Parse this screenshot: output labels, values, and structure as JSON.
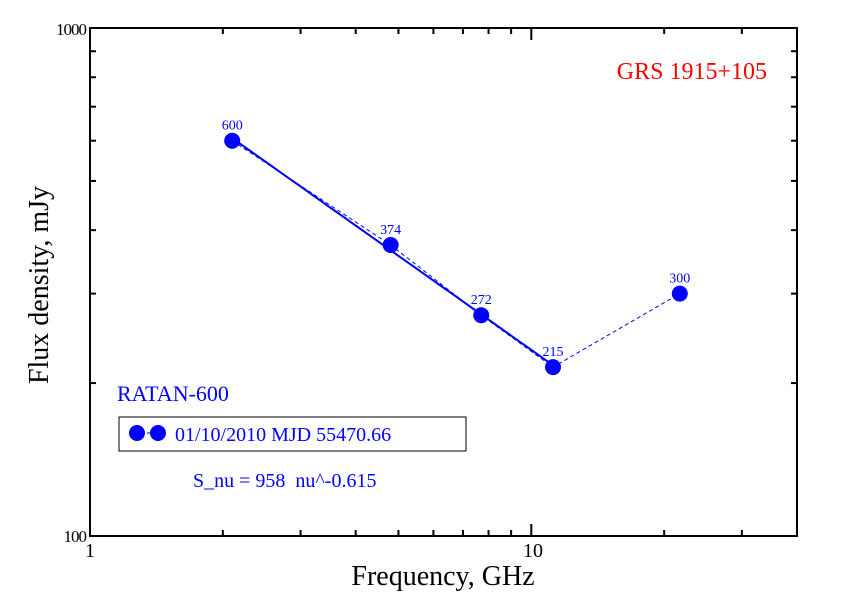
{
  "chart_data": {
    "type": "scatter",
    "title": "GRS 1915+105",
    "xlabel": "Frequency, GHz",
    "ylabel": "Flux density, mJy",
    "xscale": "log",
    "yscale": "log",
    "xlim": [
      1,
      40
    ],
    "ylim": [
      100,
      1000
    ],
    "x_tick_labels": [
      "1",
      "10"
    ],
    "y_tick_labels": [
      "100",
      "1000"
    ],
    "grid": false,
    "instrument_label": "RATAN-600",
    "series": [
      {
        "name": "01/10/2010 MJD 55470.66",
        "x": [
          2.1,
          4.8,
          7.7,
          11.2,
          21.7
        ],
        "y": [
          600,
          374,
          272,
          215,
          300
        ],
        "labels": [
          "600",
          "374",
          "272",
          "215",
          "300"
        ],
        "connect": "dashed"
      }
    ],
    "fit": {
      "label": "S_nu = 958  nu^-0.615",
      "amplitude": 958,
      "index": -0.615,
      "x_range": [
        2.1,
        11.2
      ]
    },
    "legend_placement": "bottom-left",
    "colors": {
      "series": "#0000ff",
      "title": "#ff0000",
      "axis": "#000000"
    }
  }
}
